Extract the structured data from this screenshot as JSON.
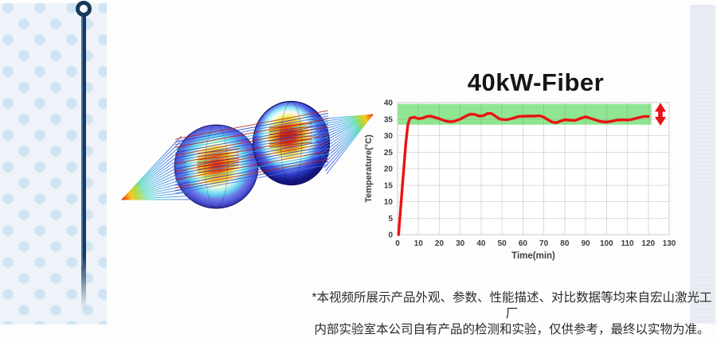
{
  "colors": {
    "accent_red": "#ea1212",
    "band_green": "#90e592",
    "pin_navy": "#16395c",
    "panel_bg": "#eef3f9",
    "panel_dot": "#cfe3f2",
    "strip_bg": "#e9edf4"
  },
  "chart_data": {
    "type": "line",
    "title": "40kW-Fiber",
    "xlabel": "Time(min)",
    "ylabel": "Temperature(°C)",
    "xlim": [
      0,
      130
    ],
    "ylim": [
      0,
      40
    ],
    "xticks": [
      0,
      10,
      20,
      30,
      40,
      50,
      60,
      70,
      80,
      90,
      100,
      110,
      120,
      130
    ],
    "yticks": [
      0,
      5,
      10,
      15,
      20,
      25,
      30,
      35,
      40
    ],
    "grid": true,
    "legend": "none",
    "band": {
      "xmin": 0,
      "xmax": 121.5,
      "ymin": 33.3,
      "ymax": 39.6,
      "color": "#90e592"
    },
    "series": [
      {
        "name": "temperature",
        "color": "#ea1212",
        "points": [
          [
            0.5,
            0
          ],
          [
            2,
            12
          ],
          [
            4,
            28
          ],
          [
            5,
            33.5
          ],
          [
            6,
            35.3
          ],
          [
            8,
            35.6
          ],
          [
            10,
            35.1
          ],
          [
            12,
            35.3
          ],
          [
            14,
            35.8
          ],
          [
            16,
            35.9
          ],
          [
            18,
            35.5
          ],
          [
            20,
            35.1
          ],
          [
            23,
            34.4
          ],
          [
            25,
            34.2
          ],
          [
            27,
            34.3
          ],
          [
            30,
            35.0
          ],
          [
            33,
            36.0
          ],
          [
            35,
            36.5
          ],
          [
            37,
            36.4
          ],
          [
            39,
            35.9
          ],
          [
            41,
            36.0
          ],
          [
            43,
            36.7
          ],
          [
            45,
            36.7
          ],
          [
            47,
            35.8
          ],
          [
            49,
            35.0
          ],
          [
            52,
            34.8
          ],
          [
            55,
            35.2
          ],
          [
            58,
            35.8
          ],
          [
            62,
            35.9
          ],
          [
            65,
            35.9
          ],
          [
            68,
            36.0
          ],
          [
            70,
            35.6
          ],
          [
            72,
            34.8
          ],
          [
            74,
            34.1
          ],
          [
            76,
            33.9
          ],
          [
            78,
            34.4
          ],
          [
            80,
            34.8
          ],
          [
            82,
            34.7
          ],
          [
            85,
            34.6
          ],
          [
            88,
            35.3
          ],
          [
            90,
            35.7
          ],
          [
            92,
            35.3
          ],
          [
            95,
            34.7
          ],
          [
            97,
            34.3
          ],
          [
            100,
            34.1
          ],
          [
            102,
            34.3
          ],
          [
            105,
            34.7
          ],
          [
            108,
            34.8
          ],
          [
            110,
            34.7
          ],
          [
            112,
            34.9
          ],
          [
            115,
            35.4
          ],
          [
            118,
            35.8
          ],
          [
            120,
            35.8
          ]
        ]
      }
    ],
    "annotation_arrow": {
      "x": 125.8,
      "ymin": 33.0,
      "ymax": 39.9,
      "color": "#e81212"
    }
  },
  "disclaimer": {
    "line1": "*本视频所展示产品外观、参数、性能描述、对比数据等均来自宏山激光工厂",
    "line2": "内部实验室本公司自有产品的检测和实验，仅供参考，最终以实物为准。"
  }
}
